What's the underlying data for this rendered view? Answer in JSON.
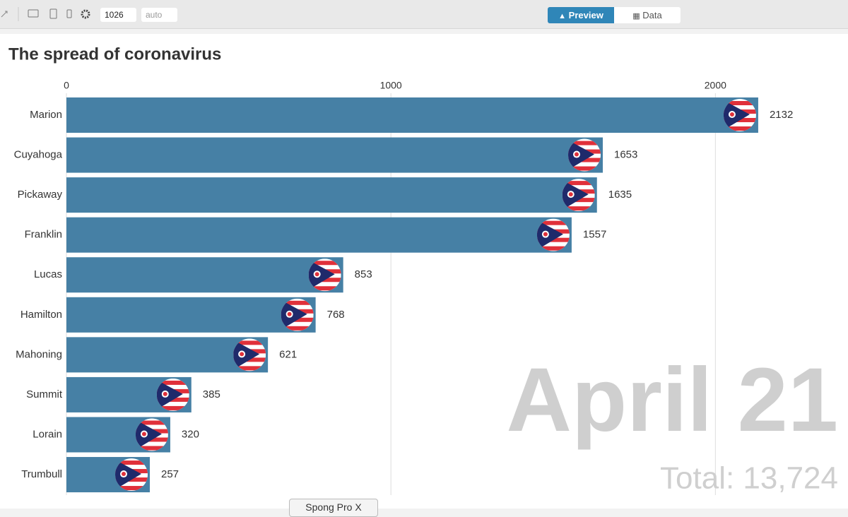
{
  "toolbar": {
    "width": "1026",
    "height": "auto",
    "preview": "Preview",
    "data": "Data"
  },
  "chart_data": {
    "type": "bar",
    "orientation": "horizontal",
    "title": "The spread of coronavirus",
    "categories": [
      "Marion",
      "Cuyahoga",
      "Pickaway",
      "Franklin",
      "Lucas",
      "Hamilton",
      "Mahoning",
      "Summit",
      "Lorain",
      "Trumbull"
    ],
    "values": [
      2132,
      1653,
      1635,
      1557,
      853,
      768,
      621,
      385,
      320,
      257
    ],
    "color": "#4680a5",
    "xlim": [
      0,
      2400
    ],
    "xticks": [
      0,
      1000,
      2000
    ],
    "grid": true,
    "date_label": "April 21",
    "total_label": "Total: 13,724"
  },
  "promo": "Spong Pro X"
}
